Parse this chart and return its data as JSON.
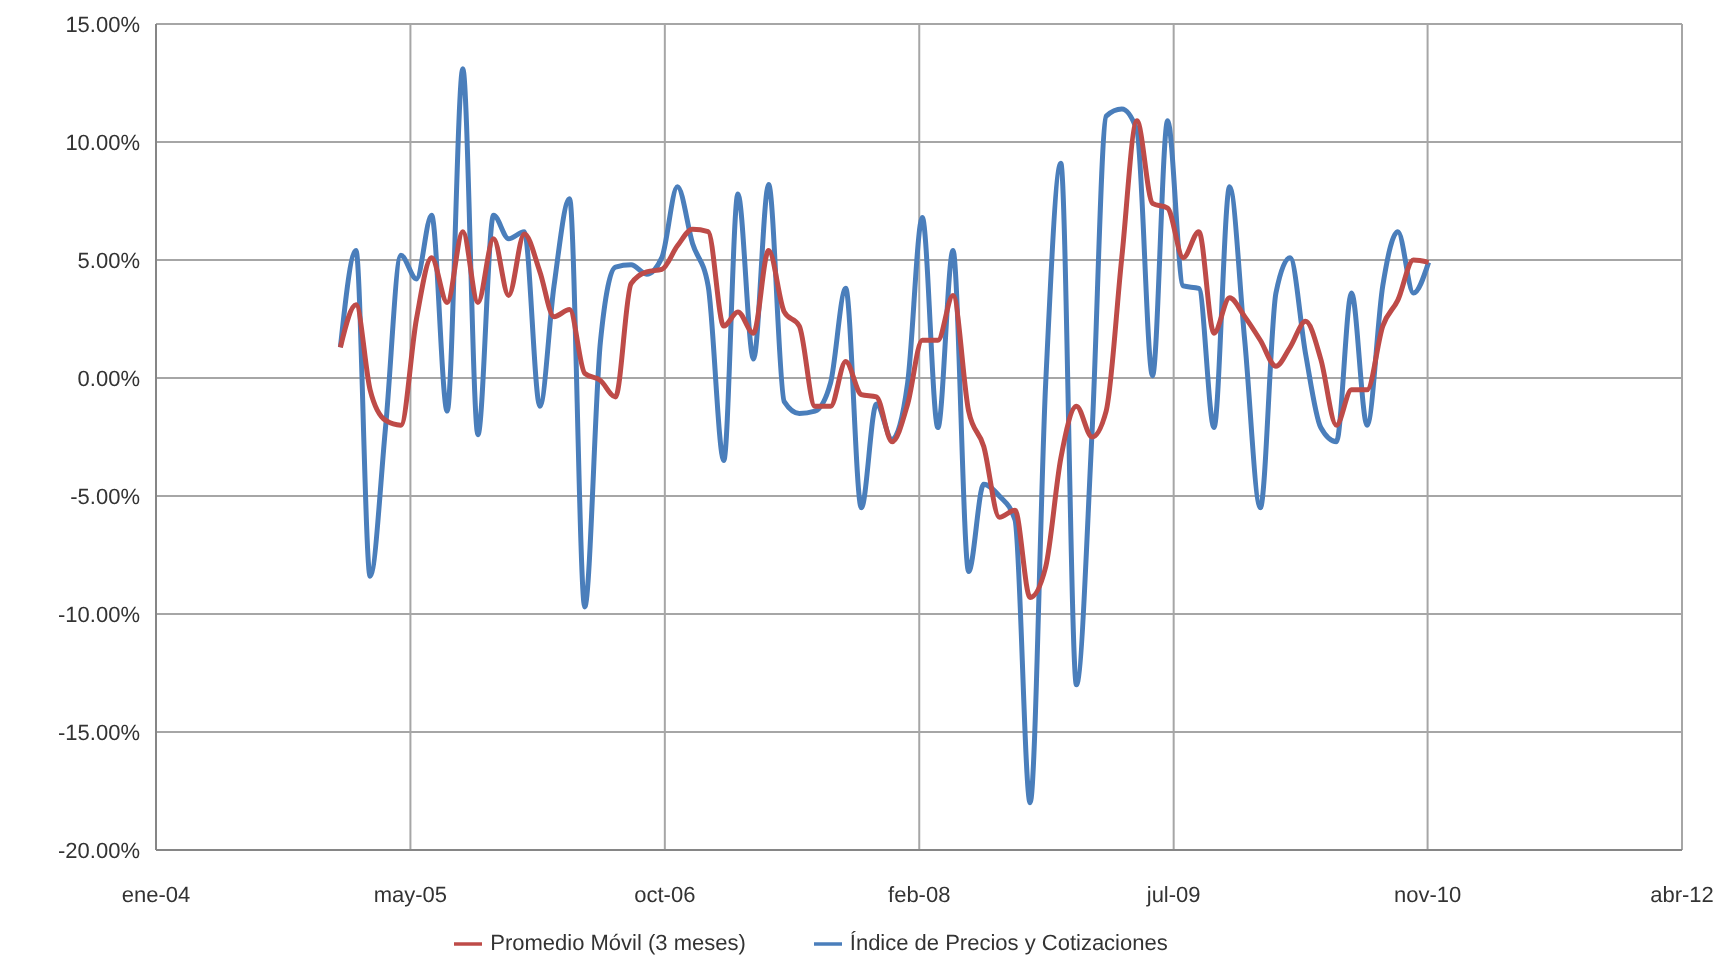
{
  "chart_data": {
    "type": "line",
    "x": [
      "2005-01",
      "2005-02",
      "2005-03",
      "2005-04",
      "2005-05",
      "2005-06",
      "2005-07",
      "2005-08",
      "2005-09",
      "2005-10",
      "2005-11",
      "2005-12",
      "2006-01",
      "2006-02",
      "2006-03",
      "2006-04",
      "2006-05",
      "2006-06",
      "2006-07",
      "2006-08",
      "2006-09",
      "2006-10",
      "2006-11",
      "2006-12",
      "2007-01",
      "2007-02",
      "2007-03",
      "2007-04",
      "2007-05",
      "2007-06",
      "2007-07",
      "2007-08",
      "2007-09",
      "2007-10",
      "2007-11",
      "2007-12",
      "2008-01",
      "2008-02",
      "2008-03",
      "2008-04",
      "2008-05",
      "2008-06",
      "2008-07",
      "2008-08",
      "2008-09",
      "2008-10",
      "2008-11",
      "2008-12",
      "2009-01",
      "2009-02",
      "2009-03",
      "2009-04",
      "2009-05",
      "2009-06",
      "2009-07",
      "2009-08",
      "2009-09",
      "2009-10",
      "2009-11",
      "2009-12",
      "2010-01",
      "2010-02",
      "2010-03",
      "2010-04",
      "2010-05",
      "2010-06",
      "2010-07",
      "2010-08",
      "2010-09",
      "2010-10",
      "2010-11",
      "2010-12"
    ],
    "series": [
      {
        "name": "Índice de Precios y Cotizaciones",
        "color": "#4a7ebb",
        "values": [
          1.3,
          5.4,
          -8.4,
          -2.0,
          5.2,
          4.2,
          6.9,
          -1.4,
          13.1,
          -2.4,
          6.9,
          5.9,
          6.2,
          -1.2,
          3.9,
          7.6,
          -9.7,
          1.5,
          4.7,
          4.8,
          4.4,
          5.1,
          8.1,
          5.7,
          3.9,
          -3.5,
          7.8,
          0.8,
          8.2,
          -1.0,
          -1.5,
          -1.4,
          -0.2,
          3.8,
          -5.5,
          -1.1,
          -2.6,
          -0.2,
          6.8,
          -2.1,
          5.4,
          -8.2,
          -4.5,
          -5.0,
          -6.0,
          -18.0,
          -0.2,
          9.1,
          -13.0,
          -2.3,
          11.1,
          11.4,
          10.5,
          0.1,
          10.9,
          3.9,
          3.8,
          -2.1,
          8.1,
          1.6,
          -5.5,
          3.6,
          5.1,
          1.0,
          -2.1,
          -2.7,
          3.6,
          -2.0,
          3.9,
          6.2,
          3.6,
          4.9
        ]
      },
      {
        "name": "Promedio Móvil (3 meses)",
        "color": "#be4b48",
        "values": [
          1.3,
          3.1,
          -0.5,
          -1.8,
          -2.0,
          2.5,
          5.1,
          3.2,
          6.2,
          3.2,
          5.9,
          3.5,
          6.1,
          4.5,
          2.6,
          2.9,
          0.2,
          -0.1,
          -0.8,
          4.0,
          4.5,
          4.6,
          5.6,
          6.3,
          6.2,
          2.2,
          2.8,
          1.9,
          5.4,
          2.8,
          2.2,
          -1.2,
          -1.2,
          0.7,
          -0.7,
          -0.8,
          -2.7,
          -1.1,
          1.6,
          1.6,
          3.5,
          -1.4,
          -2.9,
          -5.9,
          -5.6,
          -9.3,
          -8.0,
          -3.4,
          -1.2,
          -2.5,
          -1.4,
          5.1,
          10.9,
          7.4,
          7.2,
          5.1,
          6.2,
          1.9,
          3.4,
          2.6,
          1.6,
          0.5,
          1.3,
          2.4,
          0.8,
          -2.0,
          -0.5,
          -0.5,
          2.2,
          3.3,
          5.0,
          4.9
        ]
      }
    ],
    "xlim": [
      "2004-01-01",
      "2012-04-17"
    ],
    "xticks": [
      {
        "value": "2004-01-01",
        "label": "ene-04"
      },
      {
        "value": "2005-05-20",
        "label": "may-05"
      },
      {
        "value": "2006-10-07",
        "label": "oct-06"
      },
      {
        "value": "2008-02-24",
        "label": "feb-08"
      },
      {
        "value": "2009-07-13",
        "label": "jul-09"
      },
      {
        "value": "2010-11-29",
        "label": "nov-10"
      },
      {
        "value": "2012-04-17",
        "label": "abr-12"
      }
    ],
    "ylim": [
      -20,
      15
    ],
    "yticks": [
      {
        "value": -20,
        "label": "-20.00%"
      },
      {
        "value": -15,
        "label": "-15.00%"
      },
      {
        "value": -10,
        "label": "-10.00%"
      },
      {
        "value": -5,
        "label": "-5.00%"
      },
      {
        "value": 0,
        "label": "0.00%"
      },
      {
        "value": 5,
        "label": "5.00%"
      },
      {
        "value": 10,
        "label": "10.00%"
      },
      {
        "value": 15,
        "label": "15.00%"
      }
    ],
    "grid": true,
    "legend": "bottom",
    "marker": "none",
    "line_style": "solid"
  }
}
